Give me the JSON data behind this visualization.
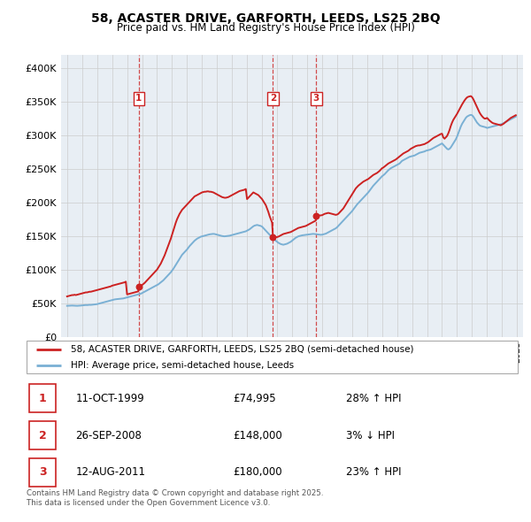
{
  "title": "58, ACASTER DRIVE, GARFORTH, LEEDS, LS25 2BQ",
  "subtitle": "Price paid vs. HM Land Registry's House Price Index (HPI)",
  "legend_label_red": "58, ACASTER DRIVE, GARFORTH, LEEDS, LS25 2BQ (semi-detached house)",
  "legend_label_blue": "HPI: Average price, semi-detached house, Leeds",
  "footer": "Contains HM Land Registry data © Crown copyright and database right 2025.\nThis data is licensed under the Open Government Licence v3.0.",
  "transactions": [
    {
      "num": 1,
      "date": "11-OCT-1999",
      "price": 74995,
      "pct": "28%",
      "dir": "↑",
      "year": 1999.78
    },
    {
      "num": 2,
      "date": "26-SEP-2008",
      "price": 148000,
      "pct": "3%",
      "dir": "↓",
      "year": 2008.73
    },
    {
      "num": 3,
      "date": "12-AUG-2011",
      "price": 180000,
      "pct": "23%",
      "dir": "↑",
      "year": 2011.61
    }
  ],
  "red_line_color": "#cc2222",
  "blue_line_color": "#7ab0d4",
  "grid_color": "#cccccc",
  "chart_bg_color": "#e8eef4",
  "background_color": "#ffffff",
  "ylim": [
    0,
    420000
  ],
  "yticks": [
    0,
    50000,
    100000,
    150000,
    200000,
    250000,
    300000,
    350000,
    400000
  ],
  "xlim_min": 1994.6,
  "xlim_max": 2025.4,
  "hpi_years": [
    1995,
    1995.083,
    1995.167,
    1995.25,
    1995.333,
    1995.417,
    1995.5,
    1995.583,
    1995.667,
    1995.75,
    1995.833,
    1995.917,
    1996,
    1996.083,
    1996.167,
    1996.25,
    1996.333,
    1996.417,
    1996.5,
    1996.583,
    1996.667,
    1996.75,
    1996.833,
    1996.917,
    1997,
    1997.083,
    1997.167,
    1997.25,
    1997.333,
    1997.417,
    1997.5,
    1997.583,
    1997.667,
    1997.75,
    1997.833,
    1997.917,
    1998,
    1998.083,
    1998.167,
    1998.25,
    1998.333,
    1998.417,
    1998.5,
    1998.583,
    1998.667,
    1998.75,
    1998.833,
    1998.917,
    1999,
    1999.083,
    1999.167,
    1999.25,
    1999.333,
    1999.417,
    1999.5,
    1999.583,
    1999.667,
    1999.75,
    1999.833,
    1999.917,
    2000,
    2000.083,
    2000.167,
    2000.25,
    2000.333,
    2000.417,
    2000.5,
    2000.583,
    2000.667,
    2000.75,
    2000.833,
    2000.917,
    2001,
    2001.083,
    2001.167,
    2001.25,
    2001.333,
    2001.417,
    2001.5,
    2001.583,
    2001.667,
    2001.75,
    2001.833,
    2001.917,
    2002,
    2002.083,
    2002.167,
    2002.25,
    2002.333,
    2002.417,
    2002.5,
    2002.583,
    2002.667,
    2002.75,
    2002.833,
    2002.917,
    2003,
    2003.083,
    2003.167,
    2003.25,
    2003.333,
    2003.417,
    2003.5,
    2003.583,
    2003.667,
    2003.75,
    2003.833,
    2003.917,
    2004,
    2004.083,
    2004.167,
    2004.25,
    2004.333,
    2004.417,
    2004.5,
    2004.583,
    2004.667,
    2004.75,
    2004.833,
    2004.917,
    2005,
    2005.083,
    2005.167,
    2005.25,
    2005.333,
    2005.417,
    2005.5,
    2005.583,
    2005.667,
    2005.75,
    2005.833,
    2005.917,
    2006,
    2006.083,
    2006.167,
    2006.25,
    2006.333,
    2006.417,
    2006.5,
    2006.583,
    2006.667,
    2006.75,
    2006.833,
    2006.917,
    2007,
    2007.083,
    2007.167,
    2007.25,
    2007.333,
    2007.417,
    2007.5,
    2007.583,
    2007.667,
    2007.75,
    2007.833,
    2007.917,
    2008,
    2008.083,
    2008.167,
    2008.25,
    2008.333,
    2008.417,
    2008.5,
    2008.583,
    2008.667,
    2008.75,
    2008.833,
    2008.917,
    2009,
    2009.083,
    2009.167,
    2009.25,
    2009.333,
    2009.417,
    2009.5,
    2009.583,
    2009.667,
    2009.75,
    2009.833,
    2009.917,
    2010,
    2010.083,
    2010.167,
    2010.25,
    2010.333,
    2010.417,
    2010.5,
    2010.583,
    2010.667,
    2010.75,
    2010.833,
    2010.917,
    2011,
    2011.083,
    2011.167,
    2011.25,
    2011.333,
    2011.417,
    2011.5,
    2011.583,
    2011.667,
    2011.75,
    2011.833,
    2011.917,
    2012,
    2012.083,
    2012.167,
    2012.25,
    2012.333,
    2012.417,
    2012.5,
    2012.583,
    2012.667,
    2012.75,
    2012.833,
    2012.917,
    2013,
    2013.083,
    2013.167,
    2013.25,
    2013.333,
    2013.417,
    2013.5,
    2013.583,
    2013.667,
    2013.75,
    2013.833,
    2013.917,
    2014,
    2014.083,
    2014.167,
    2014.25,
    2014.333,
    2014.417,
    2014.5,
    2014.583,
    2014.667,
    2014.75,
    2014.833,
    2014.917,
    2015,
    2015.083,
    2015.167,
    2015.25,
    2015.333,
    2015.417,
    2015.5,
    2015.583,
    2015.667,
    2015.75,
    2015.833,
    2015.917,
    2016,
    2016.083,
    2016.167,
    2016.25,
    2016.333,
    2016.417,
    2016.5,
    2016.583,
    2016.667,
    2016.75,
    2016.833,
    2016.917,
    2017,
    2017.083,
    2017.167,
    2017.25,
    2017.333,
    2017.417,
    2017.5,
    2017.583,
    2017.667,
    2017.75,
    2017.833,
    2017.917,
    2018,
    2018.083,
    2018.167,
    2018.25,
    2018.333,
    2018.417,
    2018.5,
    2018.583,
    2018.667,
    2018.75,
    2018.833,
    2018.917,
    2019,
    2019.083,
    2019.167,
    2019.25,
    2019.333,
    2019.417,
    2019.5,
    2019.583,
    2019.667,
    2019.75,
    2019.833,
    2019.917,
    2020,
    2020.083,
    2020.167,
    2020.25,
    2020.333,
    2020.417,
    2020.5,
    2020.583,
    2020.667,
    2020.75,
    2020.833,
    2020.917,
    2021,
    2021.083,
    2021.167,
    2021.25,
    2021.333,
    2021.417,
    2021.5,
    2021.583,
    2021.667,
    2021.75,
    2021.833,
    2021.917,
    2022,
    2022.083,
    2022.167,
    2022.25,
    2022.333,
    2022.417,
    2022.5,
    2022.583,
    2022.667,
    2022.75,
    2022.833,
    2022.917,
    2023,
    2023.083,
    2023.167,
    2023.25,
    2023.333,
    2023.417,
    2023.5,
    2023.583,
    2023.667,
    2023.75,
    2023.833,
    2023.917,
    2024,
    2024.083,
    2024.167,
    2024.25,
    2024.333,
    2024.417,
    2024.5,
    2024.583,
    2024.667,
    2024.75,
    2024.833,
    2024.917
  ],
  "hpi_vals": [
    46000,
    46100,
    46200,
    46300,
    46400,
    46300,
    46200,
    46100,
    46000,
    46100,
    46200,
    46400,
    46600,
    46800,
    47000,
    47200,
    47100,
    47300,
    47500,
    47400,
    47600,
    47800,
    48000,
    48200,
    48500,
    49000,
    49500,
    50000,
    50500,
    51000,
    51500,
    52000,
    52500,
    53000,
    53500,
    54000,
    54500,
    55000,
    55500,
    55800,
    56000,
    56200,
    56400,
    56600,
    56800,
    57000,
    57500,
    58000,
    58500,
    59000,
    59500,
    60000,
    60500,
    61000,
    61500,
    62000,
    62500,
    63000,
    63500,
    64000,
    65000,
    66000,
    67000,
    68000,
    69000,
    70000,
    71000,
    72000,
    73000,
    74000,
    75000,
    76000,
    77000,
    78000,
    79500,
    81000,
    82500,
    84000,
    86000,
    88000,
    90000,
    92000,
    94000,
    96000,
    98500,
    101000,
    104000,
    107000,
    110000,
    113000,
    116000,
    119000,
    122000,
    124000,
    126000,
    128000,
    130000,
    132500,
    135000,
    137000,
    139000,
    141000,
    143000,
    144500,
    146000,
    147000,
    148000,
    149000,
    149500,
    150000,
    150500,
    151000,
    151500,
    152000,
    152500,
    152800,
    153000,
    153200,
    153000,
    152500,
    152000,
    151500,
    151000,
    150500,
    150000,
    149800,
    149500,
    149800,
    150000,
    150200,
    150500,
    151000,
    151500,
    152000,
    152500,
    153000,
    153500,
    154000,
    154500,
    155000,
    155500,
    156000,
    156500,
    157000,
    158000,
    159000,
    160000,
    161500,
    163000,
    164500,
    165500,
    166000,
    166500,
    166000,
    165500,
    165000,
    164000,
    162000,
    160000,
    158000,
    156000,
    154000,
    152000,
    150000,
    148000,
    146000,
    144500,
    143000,
    141500,
    140000,
    139000,
    138000,
    137500,
    137000,
    137500,
    138000,
    138500,
    139500,
    140500,
    141500,
    143000,
    144500,
    146000,
    147500,
    148500,
    149500,
    150000,
    150500,
    151000,
    151200,
    151500,
    151800,
    152000,
    152200,
    152500,
    152800,
    153000,
    153200,
    153000,
    152800,
    152500,
    152200,
    152000,
    151800,
    152000,
    152500,
    153000,
    153500,
    154500,
    155500,
    156500,
    157500,
    158500,
    159500,
    160500,
    161500,
    163000,
    165000,
    167000,
    169000,
    171000,
    173000,
    175000,
    177000,
    179000,
    181000,
    183000,
    185000,
    187000,
    189500,
    192000,
    194500,
    197000,
    199000,
    201000,
    203000,
    205000,
    207000,
    209000,
    211000,
    213000,
    215000,
    217500,
    220000,
    222500,
    225000,
    227000,
    229000,
    231000,
    233000,
    235000,
    237000,
    239000,
    240500,
    242000,
    244000,
    246000,
    248000,
    249500,
    251000,
    252000,
    253000,
    254000,
    255000,
    256000,
    257000,
    258000,
    260000,
    262000,
    263000,
    264000,
    265000,
    266000,
    267000,
    268000,
    268500,
    269000,
    269500,
    270000,
    271000,
    272000,
    273000,
    274000,
    274500,
    275000,
    275500,
    276000,
    277000,
    277500,
    278000,
    278500,
    279000,
    280000,
    281000,
    282000,
    283000,
    284000,
    285000,
    286000,
    287000,
    288000,
    286000,
    284000,
    282000,
    280000,
    279000,
    280000,
    282000,
    285000,
    288000,
    291000,
    294000,
    298000,
    303000,
    308000,
    313000,
    317000,
    320000,
    323000,
    326000,
    328000,
    329000,
    330000,
    330500,
    330000,
    328000,
    325000,
    322000,
    319000,
    317000,
    315000,
    314000,
    313500,
    313000,
    312500,
    312000,
    311000,
    311500,
    312000,
    312500,
    313000,
    313500,
    314000,
    314500,
    315000,
    315500,
    316000,
    316500,
    317000,
    318000,
    319000,
    320000,
    321000,
    322000,
    323000,
    324000,
    325000,
    326000,
    327000,
    328000
  ],
  "red_years": [
    1995,
    1995.083,
    1995.167,
    1995.25,
    1995.333,
    1995.417,
    1995.5,
    1995.583,
    1995.667,
    1995.75,
    1995.833,
    1995.917,
    1996,
    1996.083,
    1996.167,
    1996.25,
    1996.333,
    1996.417,
    1996.5,
    1996.583,
    1996.667,
    1996.75,
    1996.833,
    1996.917,
    1997,
    1997.083,
    1997.167,
    1997.25,
    1997.333,
    1997.417,
    1997.5,
    1997.583,
    1997.667,
    1997.75,
    1997.833,
    1997.917,
    1998,
    1998.083,
    1998.167,
    1998.25,
    1998.333,
    1998.417,
    1998.5,
    1998.583,
    1998.667,
    1998.75,
    1998.833,
    1998.917,
    1999,
    1999.083,
    1999.167,
    1999.25,
    1999.333,
    1999.417,
    1999.5,
    1999.583,
    1999.667,
    1999.75,
    1999.78,
    2000,
    2000.083,
    2000.167,
    2000.25,
    2000.333,
    2000.417,
    2000.5,
    2000.583,
    2000.667,
    2000.75,
    2000.833,
    2000.917,
    2001,
    2001.083,
    2001.167,
    2001.25,
    2001.333,
    2001.417,
    2001.5,
    2001.583,
    2001.667,
    2001.75,
    2001.833,
    2001.917,
    2002,
    2002.083,
    2002.167,
    2002.25,
    2002.333,
    2002.417,
    2002.5,
    2002.583,
    2002.667,
    2002.75,
    2002.833,
    2002.917,
    2003,
    2003.083,
    2003.167,
    2003.25,
    2003.333,
    2003.417,
    2003.5,
    2003.583,
    2003.667,
    2003.75,
    2003.833,
    2003.917,
    2004,
    2004.083,
    2004.167,
    2004.25,
    2004.333,
    2004.417,
    2004.5,
    2004.583,
    2004.667,
    2004.75,
    2004.833,
    2004.917,
    2005,
    2005.083,
    2005.167,
    2005.25,
    2005.333,
    2005.417,
    2005.5,
    2005.583,
    2005.667,
    2005.75,
    2005.833,
    2005.917,
    2006,
    2006.083,
    2006.167,
    2006.25,
    2006.333,
    2006.417,
    2006.5,
    2006.583,
    2006.667,
    2006.75,
    2006.833,
    2006.917,
    2007,
    2007.083,
    2007.167,
    2007.25,
    2007.333,
    2007.417,
    2007.5,
    2007.583,
    2007.667,
    2007.75,
    2007.833,
    2007.917,
    2008,
    2008.083,
    2008.167,
    2008.25,
    2008.333,
    2008.417,
    2008.5,
    2008.583,
    2008.667,
    2008.73,
    2009,
    2009.083,
    2009.167,
    2009.25,
    2009.333,
    2009.417,
    2009.5,
    2009.583,
    2009.667,
    2009.75,
    2009.833,
    2009.917,
    2010,
    2010.083,
    2010.167,
    2010.25,
    2010.333,
    2010.417,
    2010.5,
    2010.583,
    2010.667,
    2010.75,
    2010.833,
    2010.917,
    2011,
    2011.083,
    2011.167,
    2011.25,
    2011.333,
    2011.417,
    2011.5,
    2011.583,
    2011.61,
    2012,
    2012.083,
    2012.167,
    2012.25,
    2012.333,
    2012.417,
    2012.5,
    2012.583,
    2012.667,
    2012.75,
    2012.833,
    2012.917,
    2013,
    2013.083,
    2013.167,
    2013.25,
    2013.333,
    2013.417,
    2013.5,
    2013.583,
    2013.667,
    2013.75,
    2013.833,
    2013.917,
    2014,
    2014.083,
    2014.167,
    2014.25,
    2014.333,
    2014.417,
    2014.5,
    2014.583,
    2014.667,
    2014.75,
    2014.833,
    2014.917,
    2015,
    2015.083,
    2015.167,
    2015.25,
    2015.333,
    2015.417,
    2015.5,
    2015.583,
    2015.667,
    2015.75,
    2015.833,
    2015.917,
    2016,
    2016.083,
    2016.167,
    2016.25,
    2016.333,
    2016.417,
    2016.5,
    2016.583,
    2016.667,
    2016.75,
    2016.833,
    2016.917,
    2017,
    2017.083,
    2017.167,
    2017.25,
    2017.333,
    2017.417,
    2017.5,
    2017.583,
    2017.667,
    2017.75,
    2017.833,
    2017.917,
    2018,
    2018.083,
    2018.167,
    2018.25,
    2018.333,
    2018.417,
    2018.5,
    2018.583,
    2018.667,
    2018.75,
    2018.833,
    2018.917,
    2019,
    2019.083,
    2019.167,
    2019.25,
    2019.333,
    2019.417,
    2019.5,
    2019.583,
    2019.667,
    2019.75,
    2019.833,
    2019.917,
    2020,
    2020.083,
    2020.167,
    2020.25,
    2020.333,
    2020.417,
    2020.5,
    2020.583,
    2020.667,
    2020.75,
    2020.833,
    2020.917,
    2021,
    2021.083,
    2021.167,
    2021.25,
    2021.333,
    2021.417,
    2021.5,
    2021.583,
    2021.667,
    2021.75,
    2021.833,
    2021.917,
    2022,
    2022.083,
    2022.167,
    2022.25,
    2022.333,
    2022.417,
    2022.5,
    2022.583,
    2022.667,
    2022.75,
    2022.833,
    2022.917,
    2023,
    2023.083,
    2023.167,
    2023.25,
    2023.333,
    2023.417,
    2023.5,
    2023.583,
    2023.667,
    2023.75,
    2023.833,
    2023.917,
    2024,
    2024.083,
    2024.167,
    2024.25,
    2024.333,
    2024.417,
    2024.5,
    2024.583,
    2024.667,
    2024.75,
    2024.833,
    2024.917
  ],
  "red_vals": [
    60000,
    60500,
    61000,
    61500,
    62000,
    62000,
    62500,
    62000,
    62500,
    63000,
    63500,
    64000,
    64500,
    65000,
    65500,
    66000,
    66000,
    66500,
    67000,
    67000,
    67500,
    68000,
    68500,
    69000,
    69500,
    70000,
    70500,
    71000,
    71500,
    72000,
    72500,
    73000,
    73500,
    74000,
    74500,
    75000,
    76000,
    76500,
    77000,
    77500,
    78000,
    78500,
    79000,
    79500,
    80000,
    80500,
    81000,
    82000,
    63000,
    63500,
    64000,
    64500,
    65000,
    65500,
    66000,
    66500,
    67000,
    67500,
    74995,
    77000,
    78500,
    80000,
    82000,
    84000,
    86000,
    88000,
    90000,
    92000,
    94000,
    96000,
    98000,
    100000,
    103000,
    106000,
    109000,
    113000,
    117000,
    121000,
    126000,
    131000,
    136000,
    141000,
    146000,
    152000,
    158000,
    164000,
    170000,
    175000,
    179000,
    183000,
    186000,
    189000,
    191000,
    193000,
    195000,
    197000,
    199000,
    201000,
    203000,
    205000,
    207000,
    209000,
    210000,
    211000,
    212000,
    213000,
    214000,
    215000,
    215500,
    216000,
    216000,
    216500,
    216500,
    216000,
    216000,
    215500,
    215000,
    214000,
    213000,
    212000,
    211000,
    210000,
    209000,
    208000,
    207500,
    207000,
    207000,
    207500,
    208000,
    209000,
    210000,
    211000,
    212000,
    213000,
    214000,
    215000,
    216000,
    217000,
    217500,
    218000,
    218500,
    219000,
    220000,
    205000,
    207000,
    209000,
    211000,
    213000,
    215000,
    214000,
    213000,
    212000,
    211000,
    209000,
    207000,
    205000,
    202000,
    199000,
    196000,
    191000,
    186000,
    180000,
    175000,
    170000,
    148000,
    148500,
    149000,
    150000,
    151000,
    152000,
    153000,
    153500,
    154000,
    154500,
    155000,
    155500,
    156000,
    157000,
    158000,
    159000,
    160000,
    161000,
    162000,
    162500,
    163000,
    163500,
    164000,
    164500,
    165000,
    166000,
    167000,
    168000,
    169000,
    170000,
    171000,
    172000,
    173000,
    180000,
    181000,
    182000,
    183000,
    183500,
    184000,
    184500,
    184000,
    183500,
    183000,
    182500,
    182000,
    181500,
    182000,
    183000,
    185000,
    187000,
    189000,
    191000,
    194000,
    197000,
    200000,
    203000,
    206000,
    209000,
    212000,
    215000,
    218000,
    221000,
    223000,
    225000,
    226500,
    228000,
    229500,
    231000,
    232000,
    233000,
    234000,
    235000,
    236500,
    238000,
    239500,
    241000,
    242000,
    243000,
    244000,
    245500,
    247000,
    249000,
    251000,
    252000,
    253500,
    255000,
    256500,
    258000,
    259000,
    260000,
    261000,
    262000,
    263000,
    264000,
    265500,
    267000,
    268500,
    270000,
    271500,
    273000,
    274000,
    275000,
    276000,
    277000,
    278500,
    280000,
    281000,
    282000,
    283000,
    284000,
    284500,
    285000,
    285000,
    285500,
    286000,
    286500,
    287000,
    288000,
    289000,
    290000,
    291500,
    293000,
    294500,
    296000,
    297000,
    298000,
    299000,
    300000,
    301000,
    302000,
    302500,
    297000,
    295000,
    297000,
    299000,
    303000,
    308000,
    314000,
    319000,
    323000,
    326000,
    329000,
    332000,
    335500,
    339000,
    342500,
    346000,
    349000,
    352000,
    354500,
    356500,
    357500,
    358000,
    358500,
    357000,
    354000,
    350000,
    346000,
    342000,
    338000,
    334000,
    331000,
    328500,
    326500,
    325000,
    325000,
    326000,
    324000,
    322000,
    320500,
    319000,
    318000,
    317500,
    317000,
    316500,
    316000,
    315500,
    315000,
    316000,
    317000,
    318500,
    320000,
    321500,
    323000,
    324500,
    326000,
    327000,
    328000,
    329000,
    330000
  ]
}
